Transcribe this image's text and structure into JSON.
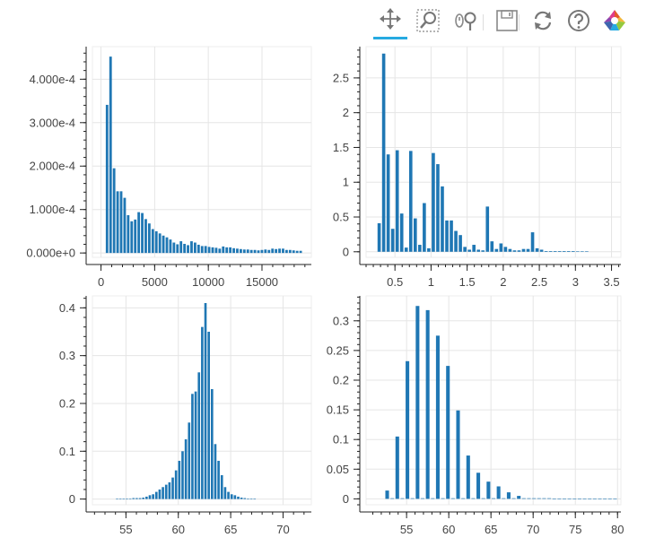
{
  "toolbar": {
    "tools": [
      {
        "name": "pan-tool-button",
        "icon": "pan-icon",
        "active": true
      },
      {
        "name": "box-zoom-tool-button",
        "icon": "box-zoom-icon",
        "active": false
      },
      {
        "name": "wheel-zoom-tool-button",
        "icon": "wheel-zoom-icon",
        "active": false
      },
      {
        "name": "save-tool-button",
        "icon": "save-icon",
        "active": false
      },
      {
        "name": "reset-tool-button",
        "icon": "reset-icon",
        "active": false
      },
      {
        "name": "help-tool-button",
        "icon": "help-icon",
        "active": false
      },
      {
        "name": "bokeh-logo",
        "icon": "bokeh-logo-icon",
        "active": false
      }
    ],
    "accent_color": "#26aae1"
  },
  "bar_color": "#1f77b4",
  "chart_data": [
    {
      "type": "bar",
      "title": "",
      "xlabel": "",
      "ylabel": "",
      "xlim": [
        -800,
        19600
      ],
      "ylim": [
        -1e-05,
        0.000475
      ],
      "x_ticks": [
        0,
        5000,
        10000,
        15000
      ],
      "x_tick_labels": [
        "0",
        "5000",
        "10000",
        "15000"
      ],
      "y_ticks": [
        0,
        0.0001,
        0.0002,
        0.0003,
        0.0004
      ],
      "y_tick_labels": [
        "0.000e+0",
        "1.000e-4",
        "2.000e-4",
        "3.000e-4",
        "4.000e-4"
      ],
      "grid": true,
      "bin_start": 400,
      "bin_width": 328,
      "values": [
        0.000341,
        0.000452,
        0.000195,
        0.000142,
        0.000142,
        0.000127,
        8.7e-05,
        7.3e-05,
        7.7e-05,
        9.4e-05,
        9.2e-05,
        7.8e-05,
        6.8e-05,
        5.5e-05,
        5e-05,
        4.5e-05,
        4e-05,
        3.6e-05,
        3.1e-05,
        2.4e-05,
        2e-05,
        2.7e-05,
        2.1e-05,
        1.8e-05,
        2.7e-05,
        2.4e-05,
        1.9e-05,
        1.6e-05,
        1.6e-05,
        1.4e-05,
        1.3e-05,
        1.2e-05,
        1e-05,
        1.5e-05,
        1.3e-05,
        1.3e-05,
        1.1e-05,
        1e-05,
        9e-06,
        8e-06,
        8e-06,
        7e-06,
        7e-06,
        6e-06,
        7e-06,
        8e-06,
        7e-06,
        1e-05,
        9e-06,
        1e-05,
        1e-05,
        7e-06,
        7e-06,
        6e-06,
        5e-06,
        5e-06
      ]
    },
    {
      "type": "bar",
      "title": "",
      "xlabel": "",
      "ylabel": "",
      "xlim": [
        0.1,
        3.63
      ],
      "ylim": [
        -0.08,
        2.95
      ],
      "x_ticks": [
        0.5,
        1,
        1.5,
        2,
        2.5,
        3,
        3.5
      ],
      "x_tick_labels": [
        "0.5",
        "1",
        "1.5",
        "2",
        "2.5",
        "3",
        "3.5"
      ],
      "y_ticks": [
        0,
        0.5,
        1,
        1.5,
        2,
        2.5
      ],
      "y_tick_labels": [
        "0",
        "0.5",
        "1",
        "1.5",
        "2",
        "2.5"
      ],
      "grid": true,
      "bin_start": 0.25,
      "bin_width": 0.0625,
      "values": [
        0.41,
        2.85,
        1.4,
        0.33,
        1.46,
        0.55,
        0.06,
        1.45,
        0.48,
        0.1,
        0.7,
        0.05,
        1.42,
        1.26,
        0.94,
        0.45,
        0.45,
        0.3,
        0.24,
        0.07,
        0.03,
        0.1,
        0.03,
        0.02,
        0.65,
        0.15,
        0.04,
        0.12,
        0.07,
        0.04,
        0.02,
        0.02,
        0.04,
        0.04,
        0.28,
        0.05,
        0.03,
        0.01,
        0.01,
        0.01,
        0.01,
        0.01,
        0.01,
        0.01,
        0.005,
        0.005,
        0.005
      ]
    },
    {
      "type": "bar",
      "title": "",
      "xlabel": "",
      "ylabel": "",
      "xlim": [
        51.8,
        72.7
      ],
      "ylim": [
        -0.012,
        0.425
      ],
      "x_ticks": [
        55,
        60,
        65,
        70
      ],
      "x_tick_labels": [
        "55",
        "60",
        "65",
        "70"
      ],
      "y_ticks": [
        0,
        0.1,
        0.2,
        0.3,
        0.4
      ],
      "y_tick_labels": [
        "0",
        "0.1",
        "0.2",
        "0.3",
        "0.4"
      ],
      "grid": true,
      "bin_start": 54,
      "bin_width": 0.3125,
      "values": [
        0.0005,
        0.0005,
        0.0005,
        0.001,
        0.001,
        0.002,
        0.002,
        0.002,
        0.003,
        0.005,
        0.008,
        0.01,
        0.015,
        0.02,
        0.025,
        0.03,
        0.035,
        0.045,
        0.06,
        0.08,
        0.1,
        0.125,
        0.16,
        0.22,
        0.225,
        0.265,
        0.36,
        0.41,
        0.35,
        0.23,
        0.115,
        0.08,
        0.05,
        0.025,
        0.015,
        0.01,
        0.008,
        0.005,
        0.003,
        0.002,
        0.001,
        0.001,
        0.0005
      ]
    },
    {
      "type": "bar",
      "title": "",
      "xlabel": "",
      "ylabel": "",
      "xlim": [
        50.2,
        80.4
      ],
      "ylim": [
        -0.01,
        0.342
      ],
      "x_ticks": [
        55,
        60,
        65,
        70,
        75,
        80
      ],
      "x_tick_labels": [
        "55",
        "60",
        "65",
        "70",
        "75",
        "80"
      ],
      "y_ticks": [
        0,
        0.05,
        0.1,
        0.15,
        0.2,
        0.25,
        0.3
      ],
      "y_tick_labels": [
        "0",
        "0.05",
        "0.1",
        "0.15",
        "0.2",
        "0.25",
        "0.3"
      ],
      "grid": true,
      "bin_start": 52.4,
      "bin_width": 0.6,
      "values": [
        0.014,
        0.001,
        0.105,
        0.001,
        0.232,
        0.001,
        0.325,
        0.001,
        0.318,
        0.001,
        0.275,
        0.001,
        0.224,
        0.001,
        0.149,
        0.001,
        0.073,
        0.001,
        0.044,
        0.001,
        0.029,
        0.001,
        0.021,
        0.001,
        0.011,
        0.001,
        0.005,
        0.001,
        0.001,
        0.001,
        0.001,
        0.001,
        0.001,
        0.0005,
        0.0005,
        0.0005,
        0.0005,
        0.0005,
        0.0005,
        0.0005,
        0.0005,
        0.0005,
        0.0005,
        0.0005,
        0.0005,
        0.0005
      ]
    }
  ]
}
